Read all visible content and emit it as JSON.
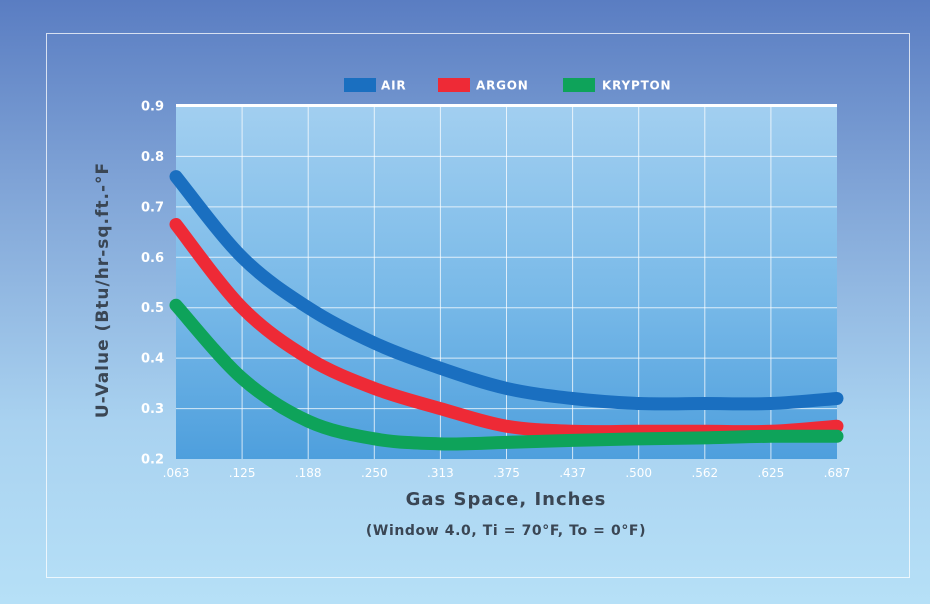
{
  "chart_data": {
    "type": "line",
    "x": [
      ".063",
      ".125",
      ".188",
      ".250",
      ".313",
      ".375",
      ".437",
      ".500",
      ".562",
      ".625",
      ".687"
    ],
    "series": [
      {
        "name": "AIR",
        "color": "#1a6fc0",
        "values": [
          0.76,
          0.6,
          0.5,
          0.43,
          0.38,
          0.34,
          0.32,
          0.31,
          0.31,
          0.31,
          0.32
        ]
      },
      {
        "name": "ARGON",
        "color": "#ee2a36",
        "values": [
          0.665,
          0.5,
          0.4,
          0.34,
          0.3,
          0.265,
          0.255,
          0.255,
          0.255,
          0.255,
          0.265
        ]
      },
      {
        "name": "KRYPTON",
        "color": "#0ea35a",
        "values": [
          0.505,
          0.36,
          0.275,
          0.24,
          0.23,
          0.233,
          0.237,
          0.24,
          0.242,
          0.245,
          0.245
        ]
      }
    ],
    "yticks": [
      "0.2",
      "0.3",
      "0.4",
      "0.5",
      "0.6",
      "0.7",
      "0.8",
      "0.9"
    ],
    "ylim": [
      0.2,
      0.9
    ],
    "xlabel": "Gas Space, Inches",
    "subtitle": "(Window 4.0, Ti = 70°F, To = 0°F)",
    "ylabel": "U-Value (Btu/hr-sq.ft.-°F",
    "legend_position": "top-center",
    "grid": true
  }
}
